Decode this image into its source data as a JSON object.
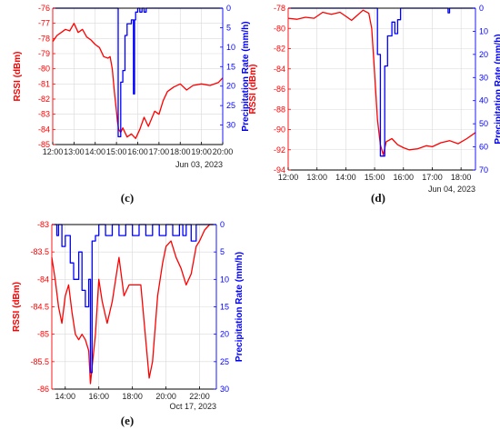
{
  "colors": {
    "rssi": "#ff0000",
    "precip": "#0000ff",
    "grid": "#d9d9d9",
    "axis": "#000000"
  },
  "chart_data": [
    {
      "type": "line",
      "caption": "(c)",
      "date_label": "Jun 03, 2023",
      "xlabel": "",
      "ylabel_left": "RSSI (dBm)",
      "ylabel_right": "Precipitation Rate (mm/h)",
      "x_ticks": [
        "12:00",
        "13:00",
        "14:00",
        "15:00",
        "16:00",
        "17:00",
        "18:00",
        "19:00",
        "20:00"
      ],
      "xlim": [
        12.0,
        20.0
      ],
      "ylim_left": [
        -85,
        -76
      ],
      "y_ticks_left": [
        -76,
        -77,
        -78,
        -79,
        -80,
        -81,
        -82,
        -83,
        -84,
        -85
      ],
      "ylim_right": [
        0,
        35
      ],
      "right_reversed": true,
      "y_ticks_right": [
        0,
        5,
        10,
        15,
        20,
        25,
        30
      ],
      "grid": true,
      "series": [
        {
          "axis": "left",
          "x": [
            12.0,
            12.2,
            12.4,
            12.6,
            12.8,
            13.0,
            13.2,
            13.4,
            13.6,
            13.8,
            14.0,
            14.2,
            14.4,
            14.6,
            14.7,
            14.8,
            14.9,
            15.0,
            15.05,
            15.1,
            15.2,
            15.3,
            15.5,
            15.7,
            15.9,
            16.1,
            16.3,
            16.5,
            16.8,
            17.0,
            17.2,
            17.4,
            17.7,
            18.0,
            18.3,
            18.6,
            19.0,
            19.4,
            19.8,
            20.0
          ],
          "y": [
            -78.2,
            -77.8,
            -77.6,
            -77.4,
            -77.5,
            -77.0,
            -77.6,
            -77.4,
            -77.9,
            -78.1,
            -78.4,
            -78.6,
            -79.2,
            -79.3,
            -79.2,
            -80.0,
            -81.5,
            -82.8,
            -83.5,
            -84.0,
            -84.2,
            -83.9,
            -84.5,
            -84.3,
            -84.6,
            -84.0,
            -83.2,
            -83.8,
            -82.8,
            -83.0,
            -82.1,
            -81.5,
            -81.2,
            -81.0,
            -81.4,
            -81.1,
            -81.0,
            -81.1,
            -80.9,
            -80.6
          ]
        },
        {
          "axis": "right",
          "step": true,
          "x": [
            12.0,
            15.0,
            15.08,
            15.2,
            15.3,
            15.4,
            15.5,
            15.6,
            15.7,
            15.8,
            15.85,
            15.9,
            16.0,
            16.1,
            16.2,
            16.3,
            16.4,
            20.0
          ],
          "y": [
            0,
            0,
            33,
            19,
            16,
            7,
            4,
            4,
            3,
            22,
            3,
            1,
            0,
            1,
            0,
            1,
            0,
            0
          ]
        }
      ]
    },
    {
      "type": "line",
      "caption": "(d)",
      "date_label": "Jun 04, 2023",
      "xlabel": "",
      "ylabel_left": "RSSI (dBm)",
      "ylabel_right": "Precipitation Rate (mm/h)",
      "x_ticks": [
        "12:00",
        "13:00",
        "14:00",
        "15:00",
        "16:00",
        "17:00",
        "18:00"
      ],
      "xlim": [
        12.0,
        18.5
      ],
      "ylim_left": [
        -94,
        -78
      ],
      "y_ticks_left": [
        -78,
        -80,
        -82,
        -84,
        -86,
        -88,
        -90,
        -92,
        -94
      ],
      "ylim_right": [
        0,
        70
      ],
      "right_reversed": true,
      "y_ticks_right": [
        0,
        10,
        20,
        30,
        40,
        50,
        60,
        70
      ],
      "grid": true,
      "series": [
        {
          "axis": "left",
          "x": [
            12.0,
            12.3,
            12.6,
            12.9,
            13.2,
            13.5,
            13.8,
            14.0,
            14.2,
            14.4,
            14.6,
            14.8,
            14.9,
            15.0,
            15.1,
            15.2,
            15.3,
            15.4,
            15.6,
            15.8,
            16.0,
            16.2,
            16.5,
            16.8,
            17.0,
            17.3,
            17.6,
            17.9,
            18.2,
            18.5
          ],
          "y": [
            -79.0,
            -79.1,
            -78.9,
            -79.0,
            -78.4,
            -78.6,
            -78.4,
            -78.8,
            -79.2,
            -78.7,
            -78.2,
            -78.5,
            -80.0,
            -84.5,
            -89.0,
            -91.5,
            -92.5,
            -91.2,
            -90.9,
            -91.5,
            -91.8,
            -92.0,
            -91.9,
            -91.6,
            -91.7,
            -91.3,
            -91.1,
            -91.4,
            -90.9,
            -90.3
          ]
        },
        {
          "axis": "right",
          "step": true,
          "x": [
            12.0,
            15.0,
            15.1,
            15.2,
            15.35,
            15.45,
            15.6,
            15.7,
            15.8,
            15.9,
            17.5,
            17.55,
            17.6,
            18.5
          ],
          "y": [
            0,
            0,
            20,
            64,
            25,
            12,
            6,
            11,
            5,
            0,
            0,
            2,
            0,
            0
          ]
        }
      ]
    },
    {
      "type": "line",
      "caption": "(e)",
      "date_label": "Oct 17, 2023",
      "xlabel": "",
      "ylabel_left": "RSSI (dBm)",
      "ylabel_right": "Precipitation Rate (mm/h)",
      "x_ticks": [
        "14:00",
        "16:00",
        "18:00",
        "20:00",
        "22:00"
      ],
      "xlim": [
        13.2,
        23.0
      ],
      "ylim_left": [
        -86,
        -83
      ],
      "y_ticks_left": [
        -83,
        -83.5,
        -84,
        -84.5,
        -85,
        -85.5,
        -86
      ],
      "ylim_right": [
        0,
        30
      ],
      "right_reversed": true,
      "y_ticks_right": [
        0,
        5,
        10,
        15,
        20,
        25,
        30
      ],
      "grid": true,
      "series": [
        {
          "axis": "left",
          "x": [
            13.2,
            13.4,
            13.6,
            13.8,
            14.0,
            14.2,
            14.4,
            14.6,
            14.8,
            15.0,
            15.2,
            15.4,
            15.5,
            15.6,
            15.8,
            16.0,
            16.2,
            16.5,
            16.8,
            17.0,
            17.2,
            17.5,
            17.8,
            18.0,
            18.5,
            19.0,
            19.2,
            19.5,
            19.8,
            20.0,
            20.3,
            20.6,
            20.9,
            21.2,
            21.5,
            21.8,
            22.0,
            22.3,
            22.6,
            22.8
          ],
          "y": [
            -83.6,
            -84.0,
            -84.5,
            -84.8,
            -84.3,
            -84.1,
            -84.6,
            -85.0,
            -85.1,
            -85.0,
            -85.1,
            -85.3,
            -85.9,
            -85.6,
            -85.0,
            -84.0,
            -84.4,
            -84.8,
            -84.4,
            -84.0,
            -83.6,
            -84.3,
            -84.1,
            -84.1,
            -84.1,
            -85.8,
            -85.5,
            -84.3,
            -83.7,
            -83.4,
            -83.3,
            -83.6,
            -83.8,
            -84.1,
            -83.9,
            -83.4,
            -83.3,
            -83.1,
            -83.0,
            -83.0
          ]
        },
        {
          "axis": "right",
          "step": true,
          "x": [
            13.2,
            13.5,
            13.6,
            13.8,
            14.0,
            14.3,
            14.5,
            14.8,
            15.0,
            15.2,
            15.4,
            15.5,
            15.6,
            15.8,
            16.0,
            16.4,
            16.8,
            17.2,
            17.6,
            18.0,
            18.4,
            18.8,
            19.2,
            19.6,
            20.0,
            20.4,
            20.8,
            21.0,
            21.2,
            21.5,
            21.8,
            22.0,
            23.0
          ],
          "y": [
            0,
            2,
            0,
            4,
            2,
            7,
            10,
            5,
            12,
            15,
            10,
            27,
            3,
            2,
            0,
            2,
            0,
            2,
            0,
            2,
            0,
            2,
            0,
            2,
            0,
            2,
            0,
            2,
            0,
            3,
            0,
            0,
            0
          ]
        }
      ]
    }
  ]
}
